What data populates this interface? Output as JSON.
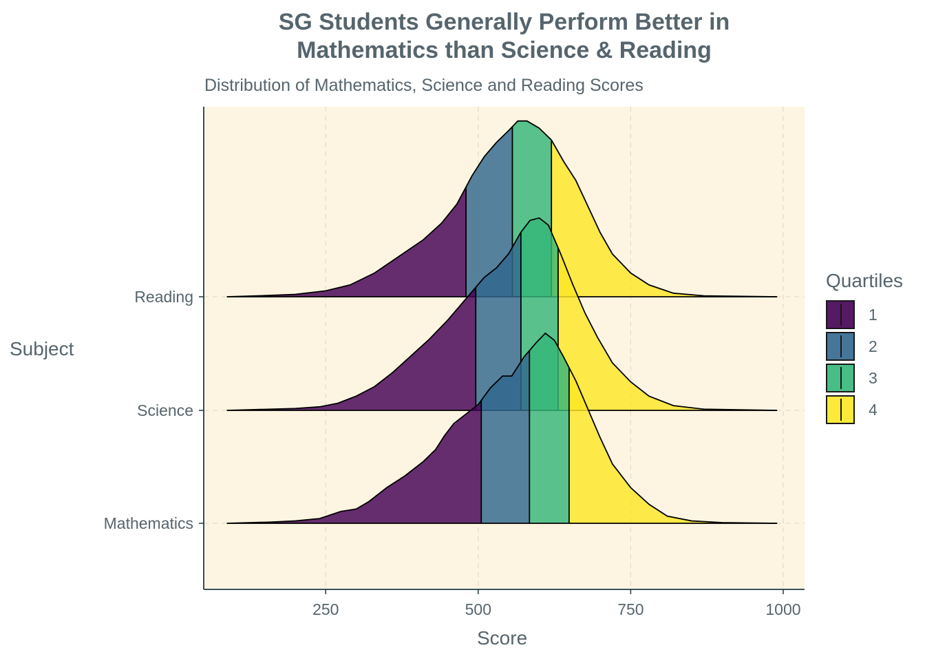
{
  "chart_data": {
    "type": "ridgeline",
    "title_lines": [
      "SG Students Generally Perform Better in",
      "Mathematics than Science & Reading"
    ],
    "subtitle": "Distribution of Mathematics, Science and Reading Scores",
    "xlabel": "Score",
    "ylabel": "Subject",
    "xlim": [
      50,
      1035
    ],
    "x_ticks": [
      250,
      500,
      750,
      1000
    ],
    "x_tick_labels": [
      "250",
      "500",
      "750",
      "1000"
    ],
    "grid": "dashed, vertical and horizontal",
    "background": "#fdf5e2",
    "legend": {
      "title": "Quartiles",
      "position": "right",
      "entries": [
        {
          "label": "1",
          "color": "#440154"
        },
        {
          "label": "2",
          "color": "#31688e"
        },
        {
          "label": "3",
          "color": "#35b779"
        },
        {
          "label": "4",
          "color": "#fde725"
        }
      ]
    },
    "series": [
      {
        "name": "Mathematics",
        "quartile_breaks": [
          505,
          584,
          649
        ],
        "density_points": [
          [
            88,
            0
          ],
          [
            160,
            0.005
          ],
          [
            200,
            0.01
          ],
          [
            240,
            0.02
          ],
          [
            275,
            0.05
          ],
          [
            300,
            0.06
          ],
          [
            320,
            0.09
          ],
          [
            350,
            0.15
          ],
          [
            380,
            0.2
          ],
          [
            410,
            0.26
          ],
          [
            430,
            0.31
          ],
          [
            445,
            0.37
          ],
          [
            460,
            0.42
          ],
          [
            480,
            0.46
          ],
          [
            500,
            0.5
          ],
          [
            520,
            0.57
          ],
          [
            540,
            0.62
          ],
          [
            555,
            0.62
          ],
          [
            575,
            0.7
          ],
          [
            595,
            0.76
          ],
          [
            610,
            0.8
          ],
          [
            625,
            0.77
          ],
          [
            640,
            0.7
          ],
          [
            660,
            0.6
          ],
          [
            680,
            0.48
          ],
          [
            700,
            0.36
          ],
          [
            720,
            0.25
          ],
          [
            750,
            0.15
          ],
          [
            780,
            0.08
          ],
          [
            810,
            0.03
          ],
          [
            850,
            0.01
          ],
          [
            900,
            0.003
          ],
          [
            990,
            0
          ]
        ]
      },
      {
        "name": "Science",
        "quartile_breaks": [
          496,
          570,
          631
        ],
        "density_points": [
          [
            88,
            0
          ],
          [
            160,
            0.005
          ],
          [
            200,
            0.008
          ],
          [
            240,
            0.015
          ],
          [
            270,
            0.03
          ],
          [
            300,
            0.06
          ],
          [
            330,
            0.1
          ],
          [
            360,
            0.16
          ],
          [
            390,
            0.23
          ],
          [
            420,
            0.3
          ],
          [
            450,
            0.38
          ],
          [
            470,
            0.44
          ],
          [
            490,
            0.5
          ],
          [
            510,
            0.56
          ],
          [
            530,
            0.6
          ],
          [
            550,
            0.66
          ],
          [
            570,
            0.75
          ],
          [
            585,
            0.8
          ],
          [
            600,
            0.81
          ],
          [
            615,
            0.78
          ],
          [
            635,
            0.66
          ],
          [
            655,
            0.53
          ],
          [
            675,
            0.41
          ],
          [
            695,
            0.31
          ],
          [
            720,
            0.2
          ],
          [
            750,
            0.12
          ],
          [
            780,
            0.06
          ],
          [
            820,
            0.02
          ],
          [
            870,
            0.005
          ],
          [
            990,
            0
          ]
        ]
      },
      {
        "name": "Reading",
        "quartile_breaks": [
          480,
          556,
          620
        ],
        "density_points": [
          [
            88,
            0
          ],
          [
            150,
            0.005
          ],
          [
            200,
            0.01
          ],
          [
            250,
            0.025
          ],
          [
            290,
            0.05
          ],
          [
            330,
            0.1
          ],
          [
            370,
            0.17
          ],
          [
            410,
            0.24
          ],
          [
            440,
            0.31
          ],
          [
            465,
            0.39
          ],
          [
            490,
            0.51
          ],
          [
            510,
            0.59
          ],
          [
            530,
            0.65
          ],
          [
            550,
            0.7
          ],
          [
            565,
            0.74
          ],
          [
            580,
            0.74
          ],
          [
            600,
            0.71
          ],
          [
            620,
            0.66
          ],
          [
            640,
            0.57
          ],
          [
            660,
            0.49
          ],
          [
            680,
            0.38
          ],
          [
            700,
            0.27
          ],
          [
            720,
            0.18
          ],
          [
            750,
            0.1
          ],
          [
            780,
            0.05
          ],
          [
            820,
            0.015
          ],
          [
            870,
            0.004
          ],
          [
            990,
            0
          ]
        ]
      }
    ]
  }
}
